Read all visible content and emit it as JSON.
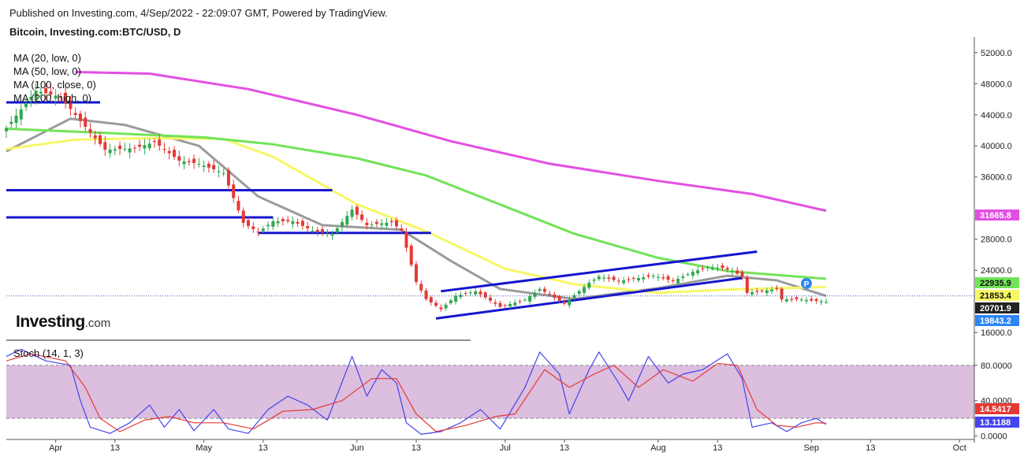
{
  "header": {
    "published": "Published on Investing.com, 4/Sep/2022 - 22:09:07 GMT, Powered by TradingView.",
    "symbol": "Bitcoin, Investing.com:BTC/USD, D"
  },
  "indicators": {
    "ma20": "MA (20, low, 0)",
    "ma50": "MA (50, low, 0)",
    "ma100": "MA (100, close, 0)",
    "ma200": "MA (200, high, 0)",
    "stoch": "Stoch (14, 1, 3)"
  },
  "logo": {
    "name": "Investing",
    "domain": ".com"
  },
  "colors": {
    "ma20": "#9b9b9b",
    "ma50": "#f7f766",
    "ma100": "#72e35a",
    "ma200": "#e34fe3",
    "bull": "#2fa84f",
    "bear": "#e53935",
    "trendline": "#1515d1",
    "stoch_k": "#4444ee",
    "stoch_d": "#e53935",
    "stoch_band": "#dcbedf",
    "badge_p": "#2d86f5"
  },
  "chart_data": [
    {
      "type": "candlestick",
      "title": "Bitcoin, Investing.com:BTC/USD, D",
      "ylim": [
        15000,
        53500
      ],
      "y_ticks": [
        "52000.0",
        "48000.0",
        "44000.0",
        "40000.0",
        "36000.0",
        "28000.0",
        "24000.0",
        "16000.0"
      ],
      "y_tick_values": [
        52000,
        48000,
        44000,
        40000,
        36000,
        28000,
        24000,
        16000
      ],
      "x_ticks": [
        "Apr",
        "13",
        "May",
        "13",
        "Jun",
        "13",
        "Jul",
        "13",
        "Aug",
        "13",
        "Sep",
        "13",
        "Oct"
      ],
      "x_tick_dates": [
        "2022-04-01",
        "2022-04-13",
        "2022-05-01",
        "2022-05-13",
        "2022-06-01",
        "2022-06-13",
        "2022-07-01",
        "2022-07-13",
        "2022-08-01",
        "2022-08-13",
        "2022-09-01",
        "2022-09-13",
        "2022-10-01"
      ],
      "date_range": [
        "2022-03-22",
        "2022-10-04"
      ],
      "price_labels": [
        {
          "value": 31665.8,
          "text": "31665.8",
          "color": "#e34fe3"
        },
        {
          "value": 22935.9,
          "text": "22935.9",
          "color": "#72e35a"
        },
        {
          "value": 21853.4,
          "text": "21853.4",
          "color": "#f7f766"
        },
        {
          "value": 20701.9,
          "text": "20701.9",
          "color": "#222222"
        },
        {
          "value": 19843.2,
          "text": "19843.2",
          "color": "#2d86f5"
        }
      ],
      "close_anchors": [
        [
          "2022-03-22",
          42300
        ],
        [
          "2022-03-28",
          47100
        ],
        [
          "2022-04-02",
          46300
        ],
        [
          "2022-04-06",
          43200
        ],
        [
          "2022-04-11",
          39500
        ],
        [
          "2022-04-17",
          39700
        ],
        [
          "2022-04-21",
          40500
        ],
        [
          "2022-04-26",
          38100
        ],
        [
          "2022-04-30",
          37700
        ],
        [
          "2022-05-05",
          36500
        ],
        [
          "2022-05-09",
          30100
        ],
        [
          "2022-05-12",
          28900
        ],
        [
          "2022-05-15",
          30300
        ],
        [
          "2022-05-19",
          30300
        ],
        [
          "2022-05-23",
          29100
        ],
        [
          "2022-05-27",
          28600
        ],
        [
          "2022-05-31",
          31800
        ],
        [
          "2022-06-03",
          29800
        ],
        [
          "2022-06-08",
          30200
        ],
        [
          "2022-06-10",
          29100
        ],
        [
          "2022-06-13",
          22500
        ],
        [
          "2022-06-15",
          20300
        ],
        [
          "2022-06-18",
          19000
        ],
        [
          "2022-06-21",
          20700
        ],
        [
          "2022-06-25",
          21300
        ],
        [
          "2022-06-30",
          19300
        ],
        [
          "2022-07-05",
          20200
        ],
        [
          "2022-07-08",
          21600
        ],
        [
          "2022-07-13",
          19700
        ],
        [
          "2022-07-18",
          22400
        ],
        [
          "2022-07-20",
          23200
        ],
        [
          "2022-07-24",
          22600
        ],
        [
          "2022-07-27",
          22900
        ],
        [
          "2022-07-31",
          23300
        ],
        [
          "2022-08-04",
          22600
        ],
        [
          "2022-08-08",
          23800
        ],
        [
          "2022-08-11",
          24400
        ],
        [
          "2022-08-14",
          24300
        ],
        [
          "2022-08-16",
          23900
        ],
        [
          "2022-08-18",
          23200
        ],
        [
          "2022-08-19",
          21100
        ],
        [
          "2022-08-22",
          21300
        ],
        [
          "2022-08-25",
          21600
        ],
        [
          "2022-08-26",
          20250
        ],
        [
          "2022-08-29",
          20300
        ],
        [
          "2022-09-01",
          20100
        ],
        [
          "2022-09-04",
          19950
        ]
      ],
      "moving_averages": [
        {
          "name": "MA (20, low, 0)",
          "points": [
            [
              "2022-03-22",
              39300
            ],
            [
              "2022-04-04",
              43500
            ],
            [
              "2022-04-15",
              42700
            ],
            [
              "2022-04-30",
              40000
            ],
            [
              "2022-05-12",
              33500
            ],
            [
              "2022-05-25",
              29800
            ],
            [
              "2022-06-10",
              29200
            ],
            [
              "2022-06-20",
              25200
            ],
            [
              "2022-06-30",
              21600
            ],
            [
              "2022-07-15",
              20300
            ],
            [
              "2022-08-01",
              21700
            ],
            [
              "2022-08-15",
              23300
            ],
            [
              "2022-08-25",
              22700
            ],
            [
              "2022-09-04",
              20700
            ]
          ]
        },
        {
          "name": "MA (50, low, 0)",
          "points": [
            [
              "2022-03-22",
              39600
            ],
            [
              "2022-04-05",
              40800
            ],
            [
              "2022-04-20",
              41000
            ],
            [
              "2022-05-05",
              40900
            ],
            [
              "2022-05-15",
              38600
            ],
            [
              "2022-06-01",
              32500
            ],
            [
              "2022-06-15",
              29000
            ],
            [
              "2022-07-01",
              24200
            ],
            [
              "2022-07-15",
              22200
            ],
            [
              "2022-08-01",
              21100
            ],
            [
              "2022-08-15",
              21500
            ],
            [
              "2022-09-04",
              21850
            ]
          ]
        },
        {
          "name": "MA (100, close, 0)",
          "points": [
            [
              "2022-03-22",
              42200
            ],
            [
              "2022-04-10",
              41700
            ],
            [
              "2022-05-01",
              41100
            ],
            [
              "2022-05-15",
              40200
            ],
            [
              "2022-06-01",
              38400
            ],
            [
              "2022-06-15",
              36200
            ],
            [
              "2022-07-01",
              32200
            ],
            [
              "2022-07-15",
              28700
            ],
            [
              "2022-08-01",
              25600
            ],
            [
              "2022-08-15",
              23900
            ],
            [
              "2022-09-04",
              22900
            ]
          ]
        },
        {
          "name": "MA (200, high, 0)",
          "points": [
            [
              "2022-04-05",
              49500
            ],
            [
              "2022-04-20",
              49300
            ],
            [
              "2022-05-10",
              47300
            ],
            [
              "2022-06-01",
              44000
            ],
            [
              "2022-06-20",
              40600
            ],
            [
              "2022-07-10",
              37700
            ],
            [
              "2022-08-01",
              35500
            ],
            [
              "2022-08-20",
              33800
            ],
            [
              "2022-09-04",
              31660
            ]
          ]
        }
      ],
      "horizontal_levels": [
        {
          "value": 45600,
          "from": "2022-03-22",
          "to": "2022-04-10"
        },
        {
          "value": 34300,
          "from": "2022-03-22",
          "to": "2022-05-27"
        },
        {
          "value": 30800,
          "from": "2022-03-22",
          "to": "2022-05-15"
        },
        {
          "value": 28800,
          "from": "2022-05-12",
          "to": "2022-06-16"
        }
      ],
      "trendlines": [
        {
          "from": [
            "2022-06-17",
            17800
          ],
          "to": [
            "2022-08-18",
            23000
          ]
        },
        {
          "from": [
            "2022-06-18",
            21300
          ],
          "to": [
            "2022-08-21",
            26400
          ]
        }
      ],
      "separator_end": "2022-06-24"
    },
    {
      "type": "line",
      "title": "Stoch (14, 1, 3)",
      "ylim": [
        -3,
        103
      ],
      "y_ticks": [
        "80.0000",
        "40.0000",
        "0.0000"
      ],
      "y_tick_values": [
        80,
        40,
        0
      ],
      "band": [
        20,
        80
      ],
      "x_ticks": [
        "Apr",
        "13",
        "May",
        "13",
        "Jun",
        "13",
        "Jul",
        "13",
        "Aug",
        "13",
        "Sep",
        "13",
        "Oct"
      ],
      "series": [
        {
          "name": "%K",
          "current": "13.1188",
          "points": [
            [
              "2022-03-22",
              90
            ],
            [
              "2022-03-25",
              98
            ],
            [
              "2022-03-30",
              85
            ],
            [
              "2022-04-04",
              80
            ],
            [
              "2022-04-06",
              40
            ],
            [
              "2022-04-08",
              10
            ],
            [
              "2022-04-12",
              3
            ],
            [
              "2022-04-16",
              15
            ],
            [
              "2022-04-20",
              35
            ],
            [
              "2022-04-23",
              10
            ],
            [
              "2022-04-26",
              30
            ],
            [
              "2022-04-29",
              6
            ],
            [
              "2022-05-03",
              30
            ],
            [
              "2022-05-06",
              8
            ],
            [
              "2022-05-10",
              3
            ],
            [
              "2022-05-14",
              30
            ],
            [
              "2022-05-18",
              45
            ],
            [
              "2022-05-22",
              35
            ],
            [
              "2022-05-26",
              18
            ],
            [
              "2022-05-31",
              90
            ],
            [
              "2022-06-03",
              45
            ],
            [
              "2022-06-06",
              75
            ],
            [
              "2022-06-09",
              60
            ],
            [
              "2022-06-11",
              15
            ],
            [
              "2022-06-14",
              2
            ],
            [
              "2022-06-18",
              5
            ],
            [
              "2022-06-22",
              15
            ],
            [
              "2022-06-26",
              30
            ],
            [
              "2022-06-30",
              8
            ],
            [
              "2022-07-05",
              55
            ],
            [
              "2022-07-08",
              95
            ],
            [
              "2022-07-12",
              70
            ],
            [
              "2022-07-14",
              25
            ],
            [
              "2022-07-18",
              75
            ],
            [
              "2022-07-20",
              95
            ],
            [
              "2022-07-24",
              60
            ],
            [
              "2022-07-26",
              40
            ],
            [
              "2022-07-30",
              90
            ],
            [
              "2022-08-03",
              60
            ],
            [
              "2022-08-06",
              70
            ],
            [
              "2022-08-10",
              75
            ],
            [
              "2022-08-15",
              93
            ],
            [
              "2022-08-18",
              65
            ],
            [
              "2022-08-20",
              10
            ],
            [
              "2022-08-24",
              15
            ],
            [
              "2022-08-27",
              5
            ],
            [
              "2022-08-30",
              15
            ],
            [
              "2022-09-02",
              20
            ],
            [
              "2022-09-04",
              13.1
            ]
          ]
        },
        {
          "name": "%D",
          "current": "14.5417",
          "points": [
            [
              "2022-03-22",
              85
            ],
            [
              "2022-03-27",
              93
            ],
            [
              "2022-04-03",
              85
            ],
            [
              "2022-04-07",
              55
            ],
            [
              "2022-04-10",
              20
            ],
            [
              "2022-04-14",
              5
            ],
            [
              "2022-04-19",
              18
            ],
            [
              "2022-04-24",
              22
            ],
            [
              "2022-04-29",
              15
            ],
            [
              "2022-05-05",
              15
            ],
            [
              "2022-05-11",
              8
            ],
            [
              "2022-05-17",
              28
            ],
            [
              "2022-05-23",
              30
            ],
            [
              "2022-05-29",
              40
            ],
            [
              "2022-06-04",
              65
            ],
            [
              "2022-06-09",
              65
            ],
            [
              "2022-06-13",
              25
            ],
            [
              "2022-06-17",
              5
            ],
            [
              "2022-06-23",
              12
            ],
            [
              "2022-06-29",
              22
            ],
            [
              "2022-07-03",
              25
            ],
            [
              "2022-07-09",
              75
            ],
            [
              "2022-07-14",
              55
            ],
            [
              "2022-07-19",
              70
            ],
            [
              "2022-07-23",
              80
            ],
            [
              "2022-07-28",
              55
            ],
            [
              "2022-08-02",
              75
            ],
            [
              "2022-08-08",
              62
            ],
            [
              "2022-08-13",
              82
            ],
            [
              "2022-08-17",
              80
            ],
            [
              "2022-08-21",
              30
            ],
            [
              "2022-08-25",
              12
            ],
            [
              "2022-08-29",
              10
            ],
            [
              "2022-09-02",
              15
            ],
            [
              "2022-09-04",
              14.5
            ]
          ]
        }
      ]
    }
  ]
}
